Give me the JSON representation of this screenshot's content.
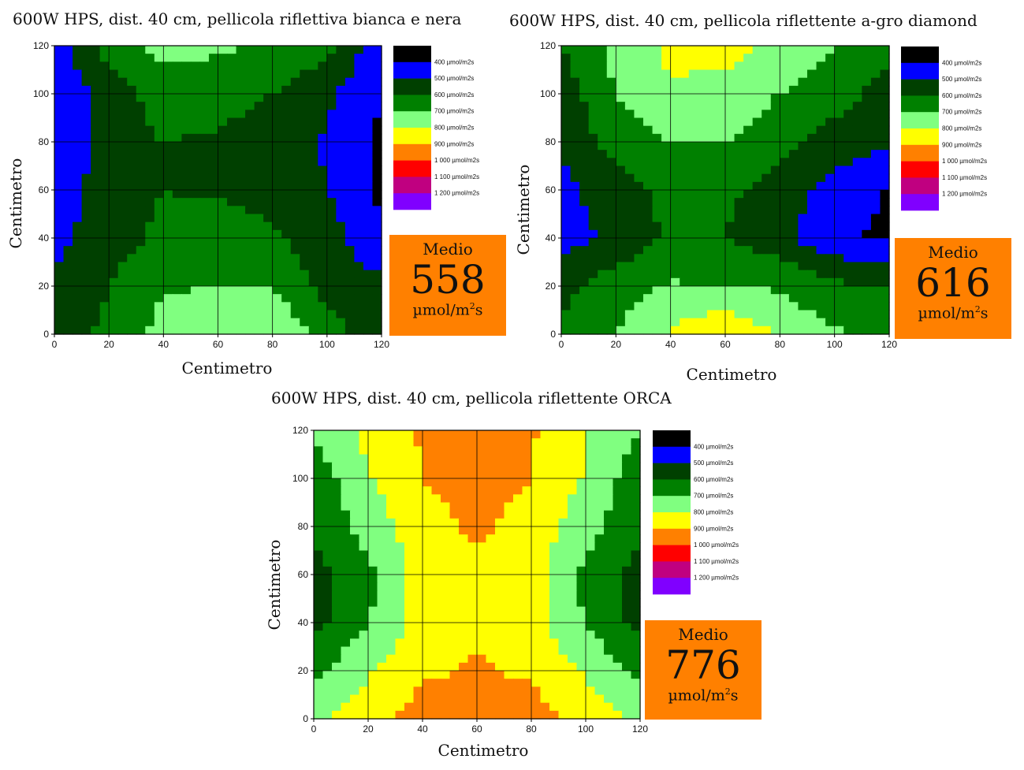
{
  "chart_data": [
    {
      "type": "heatmap",
      "title": "600W HPS, dist. 40 cm, pellicola riflettiva bianca e nera",
      "xlabel": "Centimetro",
      "ylabel": "Centimetro",
      "xlim": [
        0,
        120
      ],
      "ylim": [
        0,
        120
      ],
      "xticks": [
        "0",
        "20",
        "40",
        "60",
        "80",
        "100",
        "120"
      ],
      "yticks": [
        "0",
        "20",
        "40",
        "60",
        "80",
        "100",
        "120"
      ],
      "grid": true,
      "legend_position": "right",
      "average_label": "Medio",
      "average_value": "558",
      "average_unit": "µmol/m",
      "average_unit_sup": "2",
      "average_unit_end": "s",
      "values_umol": [
        [
          450,
          650,
          730,
          720,
          680,
          640,
          420
        ],
        [
          400,
          540,
          650,
          630,
          600,
          520,
          400
        ],
        [
          410,
          560,
          600,
          590,
          560,
          490,
          380
        ],
        [
          420,
          560,
          600,
          590,
          560,
          500,
          380
        ],
        [
          470,
          560,
          620,
          640,
          620,
          540,
          420
        ],
        [
          520,
          600,
          690,
          700,
          690,
          560,
          520
        ],
        [
          560,
          620,
          740,
          770,
          810,
          650,
          530
        ]
      ]
    },
    {
      "type": "heatmap",
      "title": "600W HPS, dist. 40 cm, pellicola riflettente a-gro diamond",
      "xlabel": "Centimetro",
      "ylabel": "Centimetro",
      "xlim": [
        0,
        120
      ],
      "ylim": [
        0,
        120
      ],
      "xticks": [
        "0",
        "20",
        "40",
        "60",
        "80",
        "100",
        "120"
      ],
      "yticks": [
        "0",
        "20",
        "40",
        "60",
        "80",
        "100",
        "120"
      ],
      "grid": true,
      "legend_position": "right",
      "average_label": "Medio",
      "average_value": "616",
      "average_unit": "µmol/m",
      "average_unit_sup": "2",
      "average_unit_end": "s",
      "values_umol": [
        [
          600,
          730,
          820,
          840,
          780,
          700,
          640
        ],
        [
          540,
          700,
          790,
          760,
          700,
          640,
          560
        ],
        [
          520,
          640,
          700,
          700,
          640,
          560,
          520
        ],
        [
          470,
          560,
          630,
          620,
          560,
          460,
          390
        ],
        [
          460,
          520,
          620,
          600,
          530,
          420,
          380
        ],
        [
          570,
          660,
          710,
          700,
          690,
          620,
          600
        ],
        [
          620,
          700,
          810,
          900,
          780,
          710,
          690
        ]
      ]
    },
    {
      "type": "heatmap",
      "title": "600W HPS, dist. 40 cm, pellicola riflettente ORCA",
      "xlabel": "Centimetro",
      "ylabel": "Centimetro",
      "xlim": [
        0,
        120
      ],
      "ylim": [
        0,
        120
      ],
      "xticks": [
        "0",
        "20",
        "40",
        "60",
        "80",
        "100",
        "120"
      ],
      "yticks": [
        "0",
        "20",
        "40",
        "60",
        "80",
        "100",
        "120"
      ],
      "grid": true,
      "legend_position": "right",
      "average_label": "Medio",
      "average_value": "776",
      "average_unit": "µmol/m",
      "average_unit_sup": "2",
      "average_unit_end": "s",
      "values_umol": [
        [
          720,
          830,
          910,
          1010,
          910,
          810,
          700
        ],
        [
          640,
          790,
          900,
          940,
          900,
          790,
          640
        ],
        [
          620,
          740,
          860,
          920,
          860,
          740,
          620
        ],
        [
          560,
          680,
          840,
          880,
          840,
          680,
          560
        ],
        [
          570,
          690,
          850,
          880,
          850,
          690,
          560
        ],
        [
          680,
          790,
          880,
          910,
          880,
          790,
          680
        ],
        [
          780,
          860,
          950,
          1010,
          950,
          860,
          780
        ]
      ]
    }
  ],
  "legend": {
    "items": [
      {
        "label": "400 µmol/m2s",
        "color": "#000000",
        "threshold": 400
      },
      {
        "label": "500 µmol/m2s",
        "color": "#0000ff",
        "threshold": 500
      },
      {
        "label": "600 µmol/m2s",
        "color": "#004000",
        "threshold": 600
      },
      {
        "label": "700 µmol/m2s",
        "color": "#008000",
        "threshold": 700
      },
      {
        "label": "800 µmol/m2s",
        "color": "#80ff80",
        "threshold": 800
      },
      {
        "label": "900 µmol/m2s",
        "color": "#ffff00",
        "threshold": 900
      },
      {
        "label": "1 000 µmol/m2s",
        "color": "#ff8000",
        "threshold": 1000
      },
      {
        "label": "1 100 µmol/m2s",
        "color": "#ff0000",
        "threshold": 1100
      },
      {
        "label": "1 200 µmol/m2s",
        "color": "#c00080",
        "threshold": 1200
      },
      {
        "label": "",
        "color": "#8000ff",
        "threshold": 99999
      }
    ]
  }
}
